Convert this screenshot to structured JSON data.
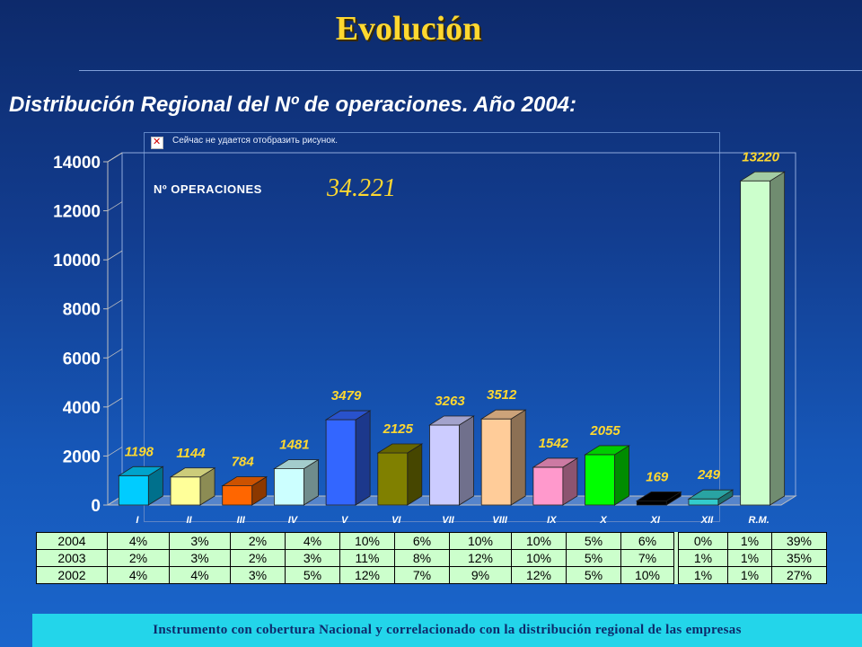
{
  "title": "Evolución",
  "subtitle": "Distribución Regional  del Nº de operaciones. Año 2004:",
  "broken_image_text": "Сейчас не удается отобразить рисунок.",
  "operations_label": "Nº  OPERACIONES",
  "operations_total": "34.221",
  "footer_text": "Instrumento con cobertura Nacional y correlacionado con  la distribución regional de las empresas",
  "chart_data": {
    "type": "bar",
    "categories": [
      "I",
      "II",
      "III",
      "IV",
      "V",
      "VI",
      "VII",
      "VIII",
      "IX",
      "X",
      "XI",
      "XII",
      "R.M."
    ],
    "values": [
      1198,
      1144,
      784,
      1481,
      3479,
      2125,
      3263,
      3512,
      1542,
      2055,
      169,
      249,
      13220
    ],
    "colors": [
      "#00ccff",
      "#ffff99",
      "#ff6600",
      "#ccffff",
      "#3366ff",
      "#808000",
      "#ccccff",
      "#ffcc99",
      "#ff99cc",
      "#00ff00",
      "#000000",
      "#33cccc",
      "#ccffcc"
    ],
    "ylim": [
      0,
      14000
    ],
    "yticks": [
      0,
      2000,
      4000,
      6000,
      8000,
      10000,
      12000,
      14000
    ],
    "tick_labels": [
      "0",
      "2000",
      "4000",
      "6000",
      "8000",
      "10000",
      "12000",
      "14000"
    ],
    "data_labels": [
      "1198",
      "1144",
      "784",
      "1481",
      "3479",
      "2125",
      "3263",
      "3512",
      "1542",
      "2055",
      "169",
      "249",
      "13220"
    ],
    "title": "",
    "xlabel": "",
    "ylabel": "",
    "grid": false
  },
  "table": {
    "rows": [
      [
        "2004",
        "4%",
        "3%",
        "2%",
        "4%",
        "10%",
        "6%",
        "10%",
        "10%",
        "5%",
        "6%",
        "0%",
        "1%",
        "39%"
      ],
      [
        "2003",
        "2%",
        "3%",
        "2%",
        "3%",
        "11%",
        "8%",
        "12%",
        "10%",
        "5%",
        "7%",
        "1%",
        "1%",
        "35%"
      ],
      [
        "2002",
        "4%",
        "4%",
        "3%",
        "5%",
        "12%",
        "7%",
        "9%",
        "12%",
        "5%",
        "10%",
        "1%",
        "1%",
        "27%"
      ]
    ]
  }
}
